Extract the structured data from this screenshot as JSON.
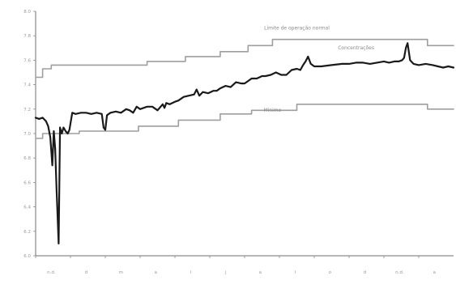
{
  "chart_data": {
    "type": "line",
    "title": "",
    "xlabel": "",
    "ylabel": "",
    "ylim": [
      6.0,
      8.0
    ],
    "xlim": [
      0,
      12
    ],
    "grid": false,
    "legend": "none",
    "y_ticks": [
      {
        "v": 8.0,
        "label": "8.0"
      },
      {
        "v": 7.8,
        "label": "7.8"
      },
      {
        "v": 7.6,
        "label": "7.6"
      },
      {
        "v": 7.4,
        "label": "7.4"
      },
      {
        "v": 7.2,
        "label": "7.2"
      },
      {
        "v": 7.0,
        "label": "7.0"
      },
      {
        "v": 6.8,
        "label": "6.8"
      },
      {
        "v": 6.6,
        "label": "6.6"
      },
      {
        "v": 6.4,
        "label": "6.4"
      },
      {
        "v": 6.2,
        "label": "6.2"
      },
      {
        "v": 6.0,
        "label": "6.0"
      }
    ],
    "x_ticks": [
      {
        "v": 0.0,
        "label": "n.d."
      },
      {
        "v": 1.0,
        "label": "d"
      },
      {
        "v": 2.0,
        "label": "m"
      },
      {
        "v": 3.0,
        "label": "a"
      },
      {
        "v": 4.0,
        "label": "l"
      },
      {
        "v": 5.0,
        "label": "j"
      },
      {
        "v": 6.0,
        "label": "a"
      },
      {
        "v": 7.0,
        "label": "l"
      },
      {
        "v": 8.0,
        "label": "o"
      },
      {
        "v": 9.0,
        "label": "d"
      },
      {
        "v": 10.0,
        "label": "n.d."
      },
      {
        "v": 11.0,
        "label": "a"
      }
    ],
    "annotations": [
      {
        "text": "Limite de operação normal",
        "x": 7.5,
        "y": 7.85
      },
      {
        "text": "Concentrações",
        "x": 9.2,
        "y": 7.69
      },
      {
        "text": "Mínimo",
        "x": 6.8,
        "y": 7.18
      }
    ],
    "series": [
      {
        "role": "upper-limit",
        "color": "#9e9e9e",
        "style": "step",
        "x": [
          0.0,
          0.2,
          0.2,
          0.45,
          0.45,
          3.2,
          3.2,
          4.3,
          4.3,
          5.3,
          5.3,
          6.1,
          6.1,
          6.8,
          6.8,
          11.25,
          11.25,
          12.0
        ],
        "y": [
          7.46,
          7.46,
          7.53,
          7.53,
          7.56,
          7.56,
          7.59,
          7.59,
          7.63,
          7.63,
          7.67,
          7.67,
          7.72,
          7.72,
          7.77,
          7.77,
          7.72,
          7.72
        ]
      },
      {
        "role": "lower-limit",
        "color": "#9e9e9e",
        "style": "step",
        "x": [
          0.0,
          0.2,
          0.2,
          1.25,
          1.25,
          2.95,
          2.95,
          4.1,
          4.1,
          5.3,
          5.3,
          6.2,
          6.2,
          7.5,
          7.5,
          11.25,
          11.25,
          12.0
        ],
        "y": [
          6.96,
          6.96,
          7.0,
          7.0,
          7.02,
          7.02,
          7.06,
          7.06,
          7.11,
          7.11,
          7.16,
          7.16,
          7.19,
          7.19,
          7.24,
          7.24,
          7.2,
          7.2
        ]
      },
      {
        "role": "measured",
        "color": "#1a1a1a",
        "style": "line",
        "x": [
          0.0,
          0.1,
          0.2,
          0.3,
          0.36,
          0.42,
          0.48,
          0.52,
          0.56,
          0.6,
          0.66,
          0.7,
          0.75,
          0.8,
          0.86,
          0.92,
          0.97,
          1.05,
          1.15,
          1.3,
          1.45,
          1.6,
          1.75,
          1.9,
          1.95,
          2.0,
          2.05,
          2.15,
          2.3,
          2.45,
          2.6,
          2.7,
          2.8,
          2.9,
          3.0,
          3.1,
          3.2,
          3.35,
          3.5,
          3.65,
          3.7,
          3.75,
          3.85,
          4.0,
          4.1,
          4.25,
          4.4,
          4.55,
          4.62,
          4.7,
          4.8,
          4.95,
          5.1,
          5.2,
          5.3,
          5.45,
          5.6,
          5.75,
          5.9,
          6.0,
          6.1,
          6.2,
          6.35,
          6.5,
          6.6,
          6.75,
          6.9,
          7.05,
          7.2,
          7.35,
          7.5,
          7.6,
          7.68,
          7.75,
          7.82,
          7.9,
          8.0,
          8.2,
          8.5,
          8.8,
          9.0,
          9.2,
          9.4,
          9.6,
          9.8,
          10.0,
          10.15,
          10.3,
          10.42,
          10.52,
          10.58,
          10.63,
          10.68,
          10.75,
          10.85,
          11.0,
          11.2,
          11.4,
          11.55,
          11.7,
          11.85,
          12.0
        ],
        "y": [
          7.13,
          7.12,
          7.13,
          7.1,
          7.06,
          6.97,
          6.74,
          7.02,
          6.88,
          6.55,
          6.1,
          7.05,
          7.0,
          7.05,
          7.02,
          7.0,
          7.03,
          7.17,
          7.16,
          7.17,
          7.17,
          7.16,
          7.17,
          7.16,
          7.05,
          7.03,
          7.15,
          7.17,
          7.18,
          7.17,
          7.2,
          7.19,
          7.17,
          7.22,
          7.2,
          7.21,
          7.22,
          7.22,
          7.19,
          7.24,
          7.21,
          7.25,
          7.24,
          7.26,
          7.27,
          7.3,
          7.31,
          7.32,
          7.36,
          7.31,
          7.34,
          7.33,
          7.35,
          7.35,
          7.37,
          7.39,
          7.38,
          7.42,
          7.41,
          7.41,
          7.43,
          7.45,
          7.45,
          7.47,
          7.47,
          7.48,
          7.5,
          7.48,
          7.48,
          7.52,
          7.53,
          7.52,
          7.56,
          7.59,
          7.63,
          7.57,
          7.55,
          7.55,
          7.56,
          7.57,
          7.57,
          7.58,
          7.58,
          7.57,
          7.58,
          7.59,
          7.58,
          7.59,
          7.59,
          7.6,
          7.62,
          7.7,
          7.74,
          7.6,
          7.57,
          7.56,
          7.57,
          7.56,
          7.55,
          7.54,
          7.55,
          7.54
        ]
      }
    ]
  }
}
